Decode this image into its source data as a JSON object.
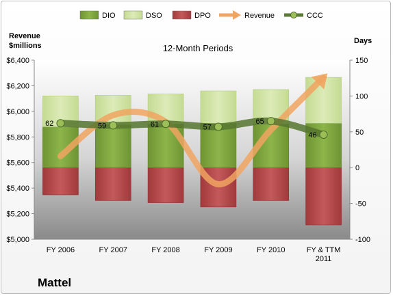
{
  "chart_data": {
    "type": "bar",
    "title": "12-Month Periods",
    "company": "Mattel",
    "left_axis_title": [
      "Revenue",
      "$millions"
    ],
    "right_axis_title": "Days",
    "categories": [
      [
        "FY 2006"
      ],
      [
        "FY 2007"
      ],
      [
        "FY 2008"
      ],
      [
        "FY 2009"
      ],
      [
        "FY 2010"
      ],
      [
        "FY & TTM",
        "2011"
      ]
    ],
    "left_axis": {
      "min": 5000,
      "max": 6400,
      "step": 200,
      "tick_labels": [
        "$5,000",
        "$5,200",
        "$5,400",
        "$5,600",
        "$5,800",
        "$6,000",
        "$6,200",
        "$6,400"
      ]
    },
    "right_axis": {
      "min": -100,
      "max": 150,
      "step": 50,
      "tick_labels": [
        "-100",
        "-50",
        "0",
        "50",
        "100",
        "150"
      ]
    },
    "legend": [
      {
        "name": "DIO",
        "kind": "bar",
        "color": "#7fa53c"
      },
      {
        "name": "DSO",
        "kind": "bar",
        "color": "#cfe3a0"
      },
      {
        "name": "DPO",
        "kind": "bar",
        "color": "#b34748"
      },
      {
        "name": "Revenue",
        "kind": "arrow",
        "color": "#f0a560"
      },
      {
        "name": "CCC",
        "kind": "line",
        "color": "#5a7b34"
      }
    ],
    "series": [
      {
        "name": "DIO",
        "axis": "days",
        "values": [
          57,
          60,
          61,
          62,
          61,
          62
        ]
      },
      {
        "name": "DSO",
        "axis": "days",
        "values": [
          43,
          41,
          42,
          45,
          48,
          64
        ]
      },
      {
        "name": "DPO",
        "axis": "days",
        "values": [
          -38,
          -46,
          -49,
          -55,
          -46,
          -80
        ]
      },
      {
        "name": "Revenue",
        "axis": "revenue",
        "values": [
          5650,
          5970,
          5918,
          5430,
          5856,
          6266
        ]
      },
      {
        "name": "CCC",
        "axis": "days",
        "values": [
          62,
          59,
          61,
          57,
          65,
          46
        ],
        "labels": [
          "62",
          "59",
          "61",
          "57",
          "65",
          "46"
        ]
      }
    ],
    "legend_position": "top",
    "grid": false
  }
}
